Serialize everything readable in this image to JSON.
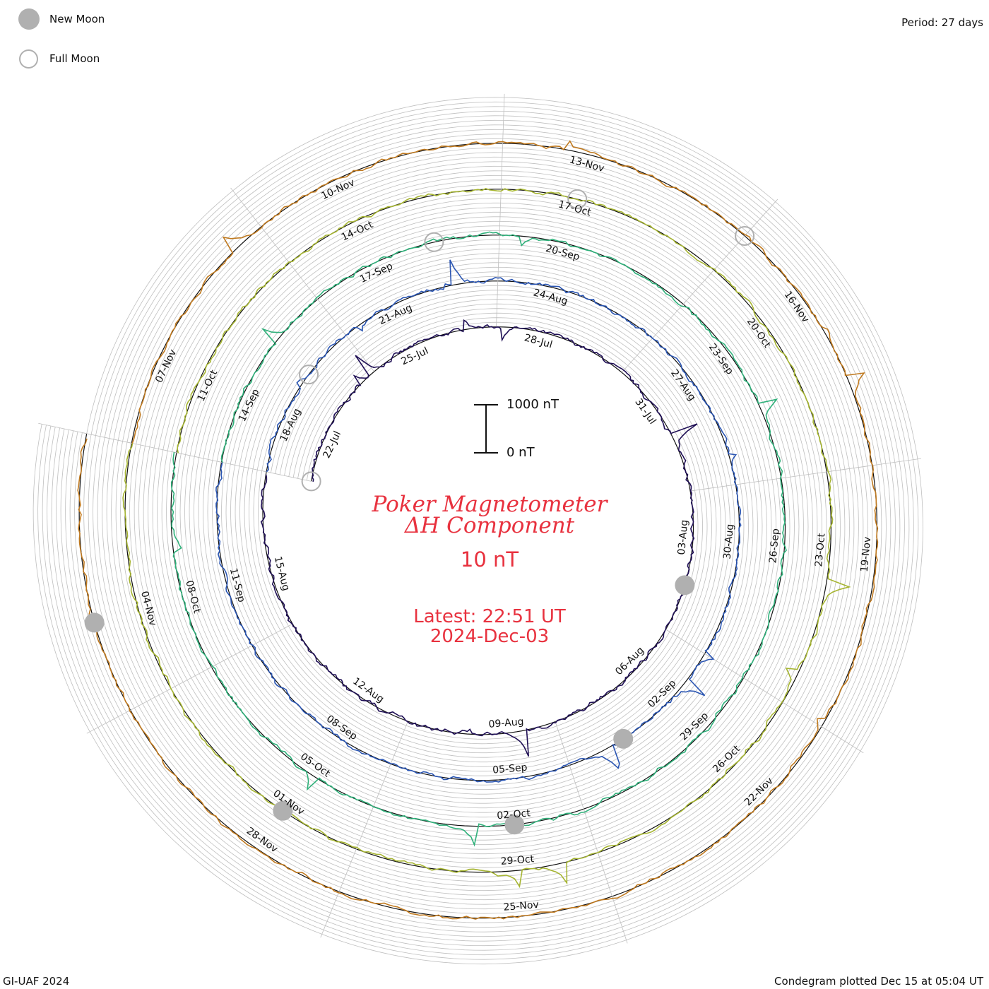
{
  "header": {
    "legend": [
      {
        "symbol": "new-moon",
        "label": "New Moon"
      },
      {
        "symbol": "full-moon",
        "label": "Full Moon"
      }
    ],
    "period": "Period: 27 days"
  },
  "center": {
    "scale_top": "1000 nT",
    "scale_bottom": "0 nT",
    "title_line1": "Poker Magnetometer",
    "title_line2": "ΔH Component",
    "baseline": "10 nT",
    "latest_line1": "Latest: 22:51 UT",
    "latest_line2": "2024-Dec-03"
  },
  "footer": {
    "left": "GI-UAF 2024",
    "right": "Condegram plotted Dec 15 at 05:04 UT"
  },
  "colors": {
    "text_red": "#e8323f",
    "moon_gray": "#b0b0b0",
    "grid": "#bfbfbf",
    "revolutions": [
      "#1f0f55",
      "#26239a",
      "#2a55b2",
      "#2ea3a4",
      "#2fb07a",
      "#55b53a",
      "#a6b532",
      "#b8a02a",
      "#c07a20",
      "#c0461e"
    ]
  },
  "chart_data": {
    "type": "line",
    "projection": "condegram spiral (polar, 27-day revolution)",
    "period_days": 27,
    "component": "ΔH",
    "units": "nT",
    "scale_bar_nT": [
      0,
      1000
    ],
    "date_labels": [
      "22-Jul",
      "25-Jul",
      "28-Jul",
      "31-Jul",
      "03-Aug",
      "06-Aug",
      "09-Aug",
      "12-Aug",
      "15-Aug",
      "18-Aug",
      "21-Aug",
      "24-Aug",
      "27-Aug",
      "30-Aug",
      "02-Sep",
      "05-Sep",
      "08-Sep",
      "11-Sep",
      "14-Sep",
      "17-Sep",
      "20-Sep",
      "23-Sep",
      "26-Sep",
      "29-Sep",
      "02-Oct",
      "05-Oct",
      "08-Oct",
      "11-Oct",
      "14-Oct",
      "17-Oct",
      "20-Oct",
      "23-Oct",
      "26-Oct",
      "29-Oct",
      "01-Nov",
      "04-Nov",
      "07-Nov",
      "10-Nov",
      "13-Nov",
      "16-Nov",
      "19-Nov",
      "22-Nov",
      "25-Nov",
      "28-Nov"
    ],
    "new_moons": [
      "04-Aug",
      "03-Sep",
      "02-Oct",
      "01-Nov",
      "01-Dec"
    ],
    "full_moons": [
      "21-Jul",
      "19-Aug",
      "18-Sep",
      "17-Oct",
      "15-Nov"
    ],
    "start_date": "2024-07-21",
    "end_date": "2024-12-03"
  }
}
